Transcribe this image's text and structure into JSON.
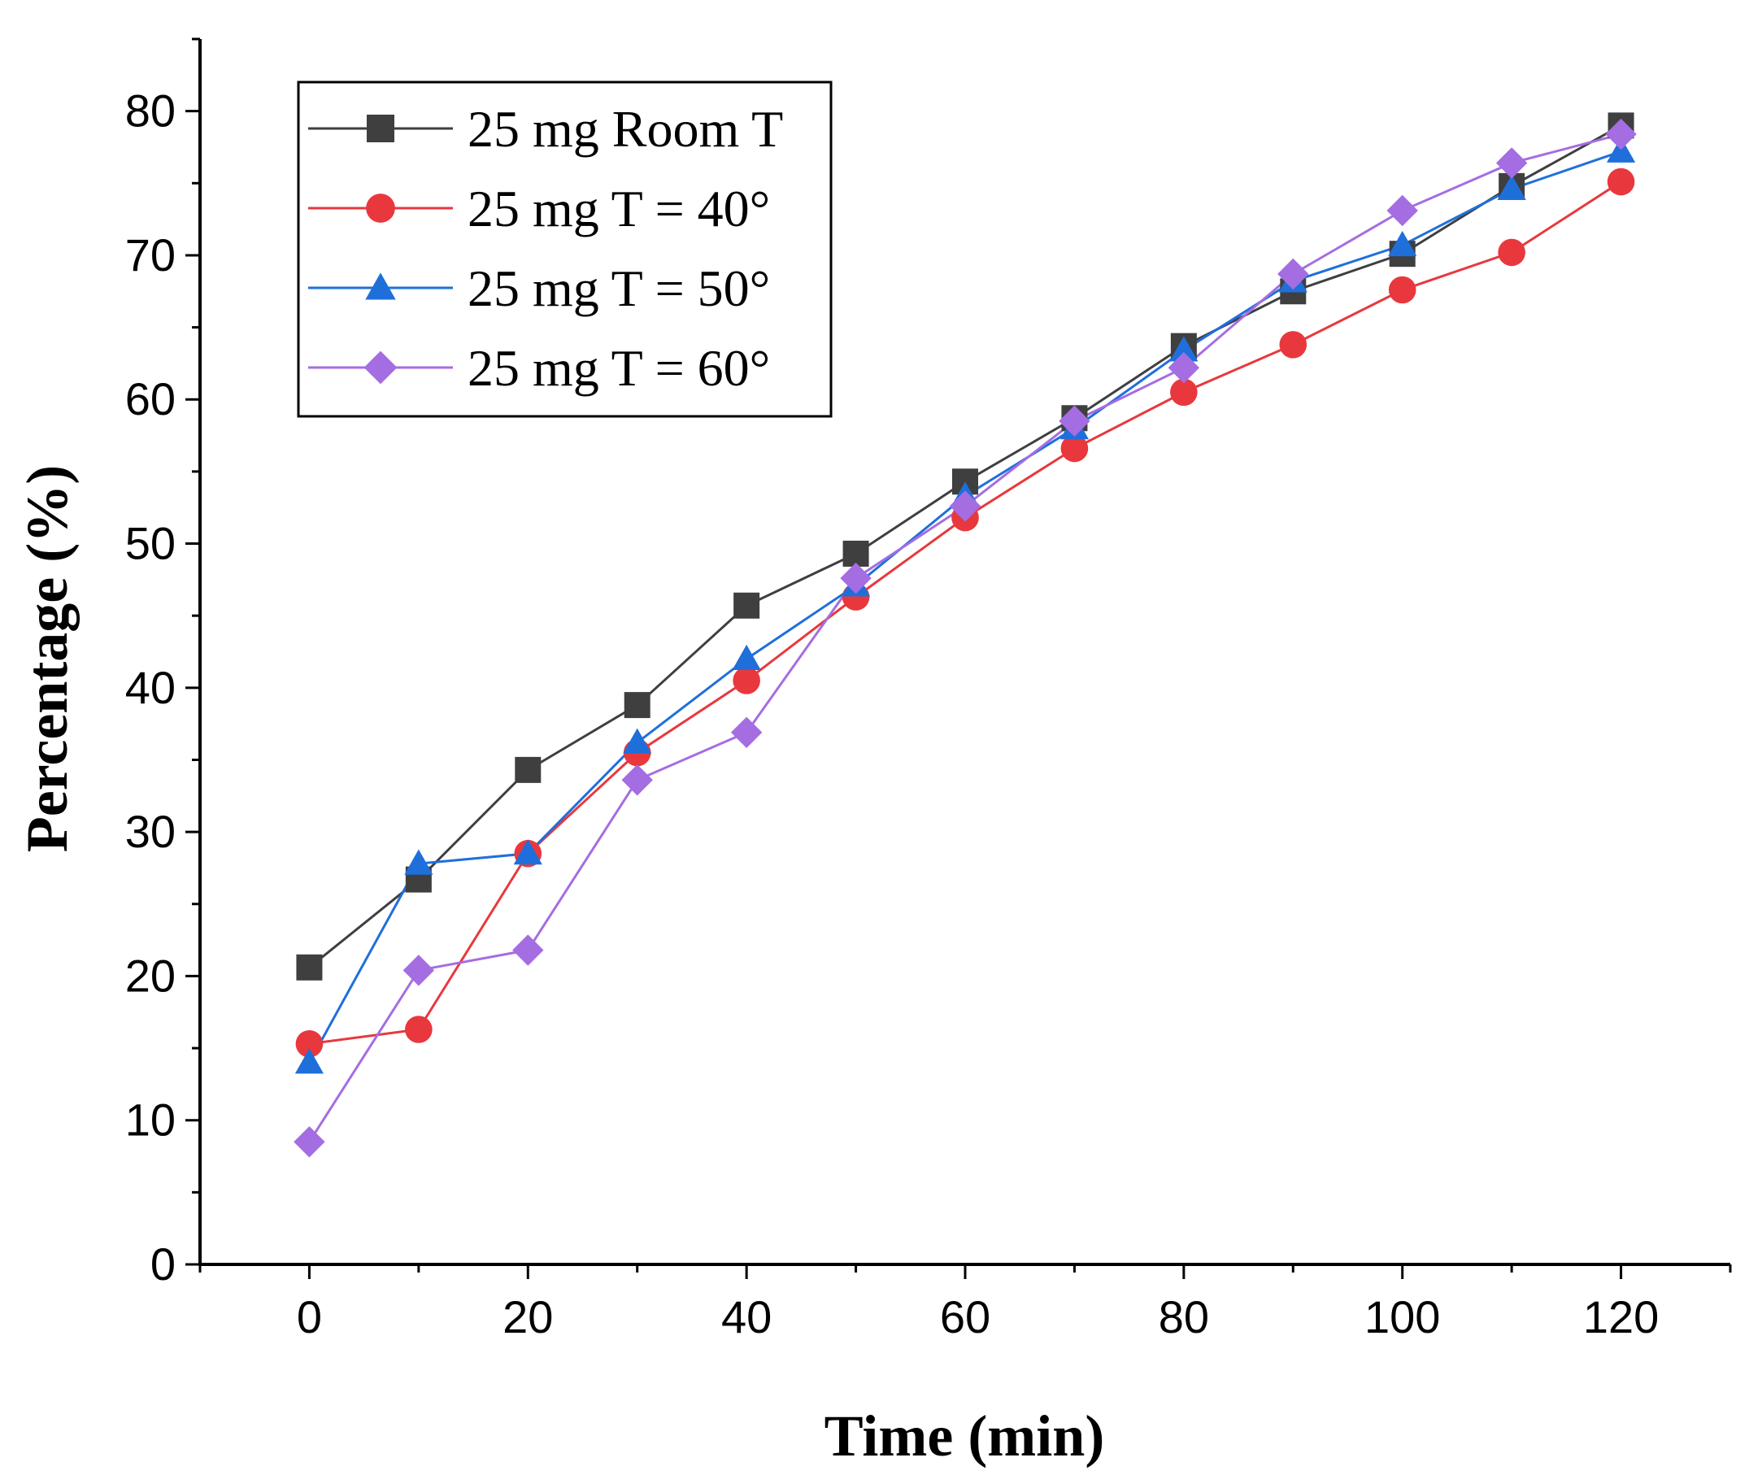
{
  "chart_data": {
    "type": "line",
    "title": "",
    "xlabel": "Time (min)",
    "ylabel": "Percentage (%)",
    "xlim": [
      -10,
      130
    ],
    "ylim": [
      0,
      85
    ],
    "x_ticks": [
      0,
      20,
      40,
      60,
      80,
      100,
      120
    ],
    "y_ticks": [
      0,
      10,
      20,
      30,
      40,
      50,
      60,
      70,
      80
    ],
    "x_tick_labels": [
      "0",
      "20",
      "40",
      "60",
      "80",
      "100",
      "120"
    ],
    "y_tick_labels": [
      "0",
      "10",
      "20",
      "30",
      "40",
      "50",
      "60",
      "70",
      "80"
    ],
    "grid": false,
    "legend_position": "top-left",
    "x": [
      0,
      10,
      20,
      30,
      40,
      50,
      60,
      70,
      80,
      90,
      100,
      110,
      120
    ],
    "series": [
      {
        "name": "25 mg Room T",
        "color": "#3f3f3f",
        "marker": "square",
        "values": [
          20.6,
          26.7,
          34.3,
          38.8,
          45.7,
          49.3,
          54.3,
          58.7,
          63.7,
          67.5,
          70.1,
          74.8,
          79.0
        ]
      },
      {
        "name": "25 mg T = 40°",
        "color": "#e8383d",
        "marker": "circle",
        "values": [
          15.3,
          16.3,
          28.5,
          35.5,
          40.5,
          46.3,
          51.8,
          56.6,
          60.5,
          63.8,
          67.6,
          70.2,
          75.1
        ]
      },
      {
        "name": "25 mg T = 50°",
        "color": "#1f6fdb",
        "marker": "triangle",
        "values": [
          14.0,
          27.8,
          28.5,
          36.2,
          42.0,
          47.1,
          53.3,
          58.0,
          63.4,
          68.2,
          70.7,
          74.6,
          77.2
        ]
      },
      {
        "name": "25 mg T = 60°",
        "color": "#a56de2",
        "marker": "diamond",
        "values": [
          8.5,
          20.4,
          21.8,
          33.6,
          36.9,
          47.6,
          52.6,
          58.5,
          62.2,
          68.7,
          73.1,
          76.4,
          78.4
        ]
      }
    ]
  }
}
